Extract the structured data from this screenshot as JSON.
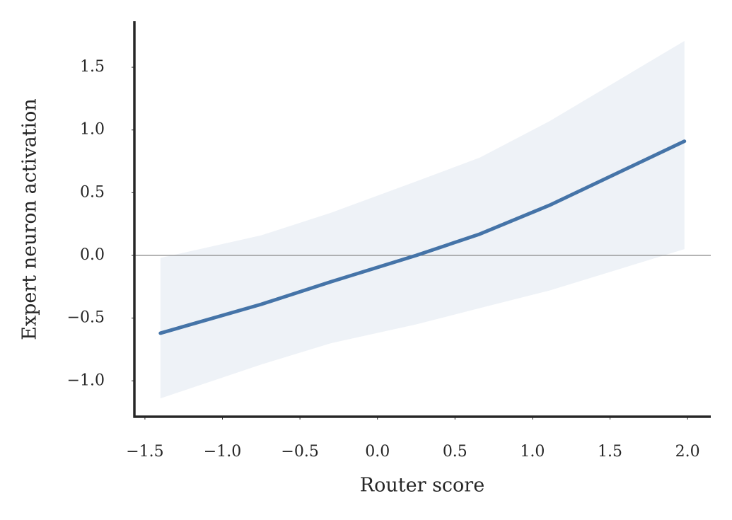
{
  "chart_data": {
    "type": "line_band",
    "xlabel": "Router score",
    "ylabel": "Expert neuron activation",
    "x": [
      -1.4,
      -0.75,
      -0.3,
      0.25,
      0.66,
      1.11,
      1.98
    ],
    "series": [
      {
        "color": "#4574a8",
        "band_color": "#eef2f7",
        "values": [
          -0.62,
          -0.39,
          -0.21,
          0.0,
          0.17,
          0.4,
          0.91
        ],
        "upper": [
          -0.02,
          0.16,
          0.34,
          0.59,
          0.78,
          1.07,
          1.71
        ],
        "lower": [
          -1.14,
          -0.87,
          -0.7,
          -0.55,
          -0.42,
          -0.28,
          0.05
        ]
      }
    ],
    "hline": 0,
    "hline_color": "#888888",
    "xlim": [
      -1.568,
      2.15
    ],
    "ylim": [
      -1.286,
      1.867
    ],
    "xticks": [
      {
        "value": -1.5,
        "label": "−1.5"
      },
      {
        "value": -1.0,
        "label": "−1.0"
      },
      {
        "value": -0.5,
        "label": "−0.5"
      },
      {
        "value": 0.0,
        "label": "0.0"
      },
      {
        "value": 0.5,
        "label": "0.5"
      },
      {
        "value": 1.0,
        "label": "1.0"
      },
      {
        "value": 1.5,
        "label": "1.5"
      },
      {
        "value": 2.0,
        "label": "2.0"
      }
    ],
    "yticks": [
      {
        "value": -1.0,
        "label": "−1.0"
      },
      {
        "value": -0.5,
        "label": "−0.5"
      },
      {
        "value": 0.0,
        "label": "0.0"
      },
      {
        "value": 0.5,
        "label": "0.5"
      },
      {
        "value": 1.0,
        "label": "1.0"
      },
      {
        "value": 1.5,
        "label": "1.5"
      }
    ]
  }
}
